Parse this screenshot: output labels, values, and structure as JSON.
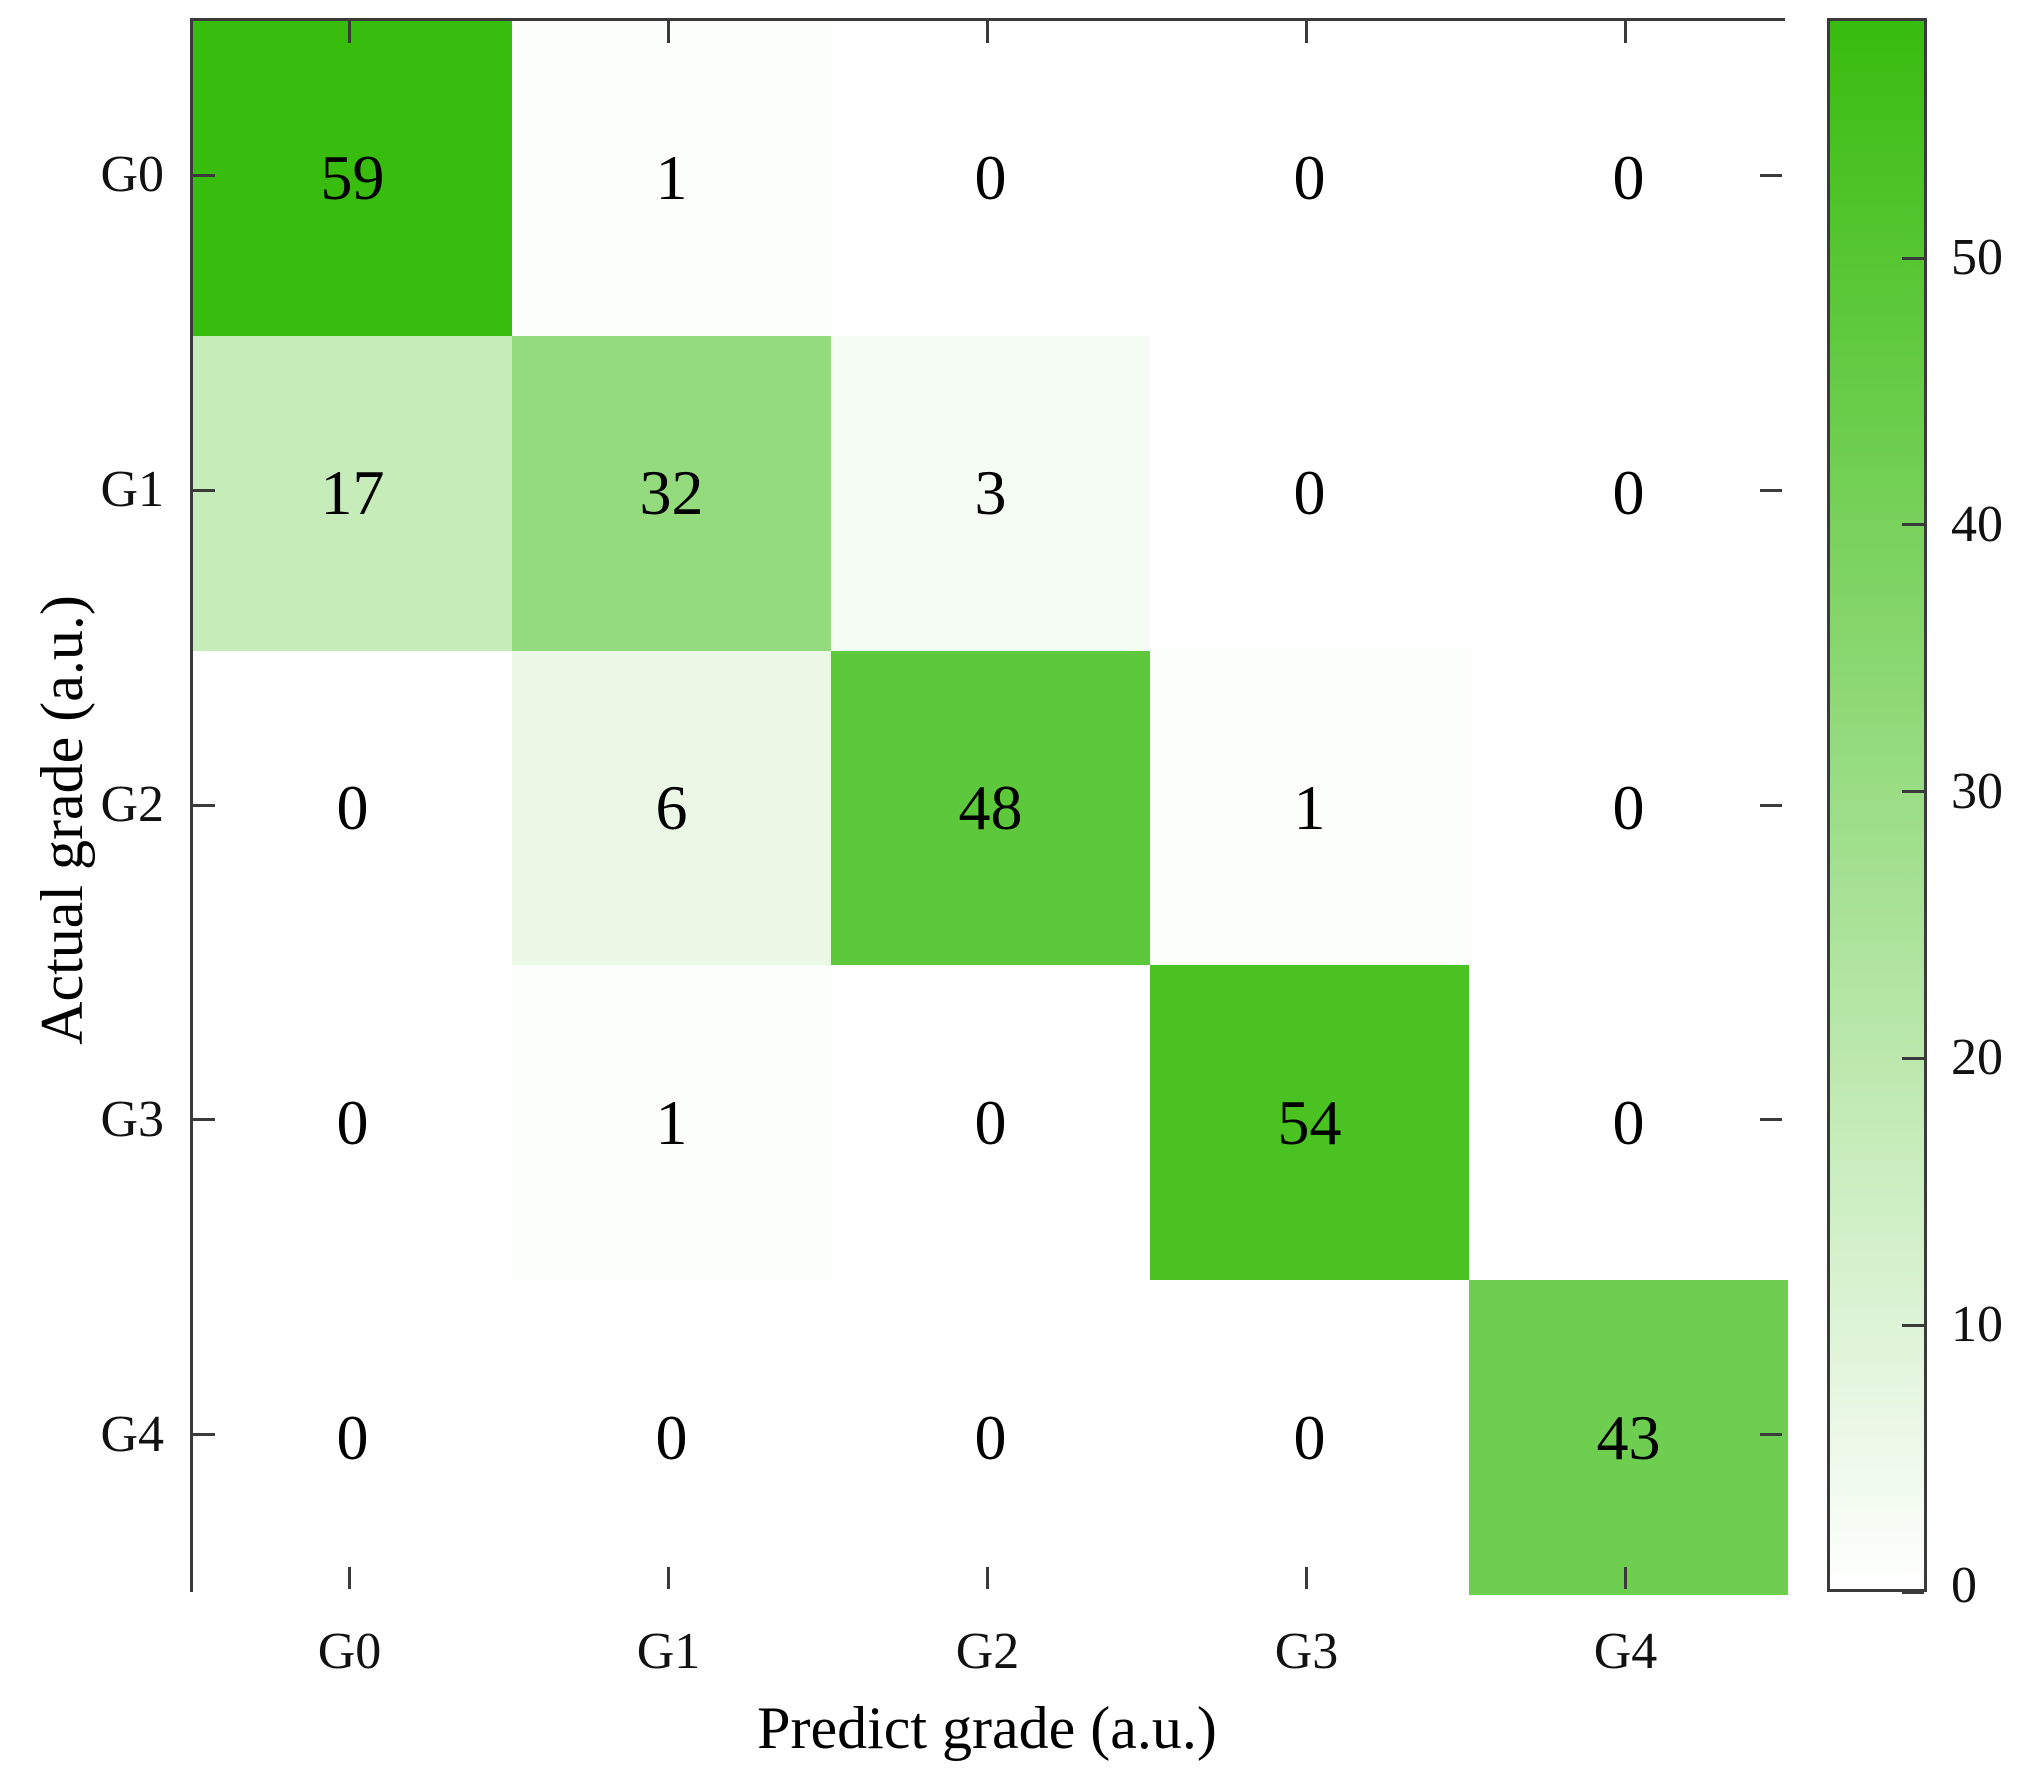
{
  "figure": {
    "title": "",
    "x_axis_title": "Predict grade (a.u.)",
    "y_axis_title": "Actual grade (a.u.)"
  },
  "chart_data": {
    "type": "heatmap",
    "subtype": "confusion-matrix",
    "x_categories": [
      "G0",
      "G1",
      "G2",
      "G3",
      "G4"
    ],
    "y_categories": [
      "G0",
      "G1",
      "G2",
      "G3",
      "G4"
    ],
    "matrix": [
      [
        59,
        1,
        0,
        0,
        0
      ],
      [
        17,
        32,
        3,
        0,
        0
      ],
      [
        0,
        6,
        48,
        1,
        0
      ],
      [
        0,
        1,
        0,
        54,
        0
      ],
      [
        0,
        0,
        0,
        0,
        43
      ]
    ],
    "xlabel": "Predict grade (a.u.)",
    "ylabel": "Actual grade (a.u.)",
    "value_min": 0,
    "value_max": 59,
    "color_min": "#ffffff",
    "color_max": "#38bc0e",
    "axis_color": "#3a3a3a",
    "cell_text_color": "#000000",
    "colorbar": {
      "position": "right",
      "ticks": [
        0,
        10,
        20,
        30,
        40,
        50
      ]
    },
    "grid": false,
    "legend_position": "right-colorbar"
  }
}
